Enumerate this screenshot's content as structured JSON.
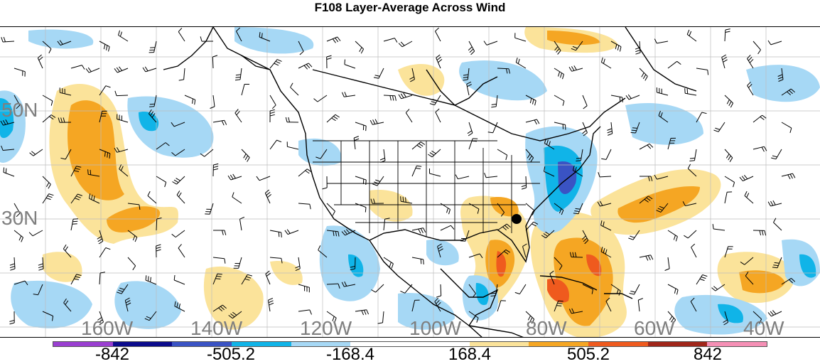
{
  "title": "F108 Layer-Average Across Wind",
  "lat_labels": [
    "50N",
    "30N"
  ],
  "lon_labels": [
    "160W",
    "140W",
    "120W",
    "100W",
    "80W",
    "60W",
    "40W"
  ],
  "colorbar": {
    "colors": [
      "#9a3fd1",
      "#0b0b8c",
      "#3a53c4",
      "#10b4e8",
      "#a6d8f5",
      "#ffffff",
      "#ffffff",
      "#fbe39a",
      "#f5a623",
      "#ef5a1e",
      "#a0261a",
      "#f58fb5"
    ],
    "labels": [
      "-842",
      "-505.2",
      "-168.4",
      "168.4",
      "505.2",
      "842"
    ]
  },
  "shading_colors": {
    "light_blue": "#a6d8f5",
    "blue": "#10b4e8",
    "dark_blue": "#3a53c4",
    "light_orange": "#fbe39a",
    "orange": "#f5a623",
    "red_orange": "#ef5a1e"
  }
}
